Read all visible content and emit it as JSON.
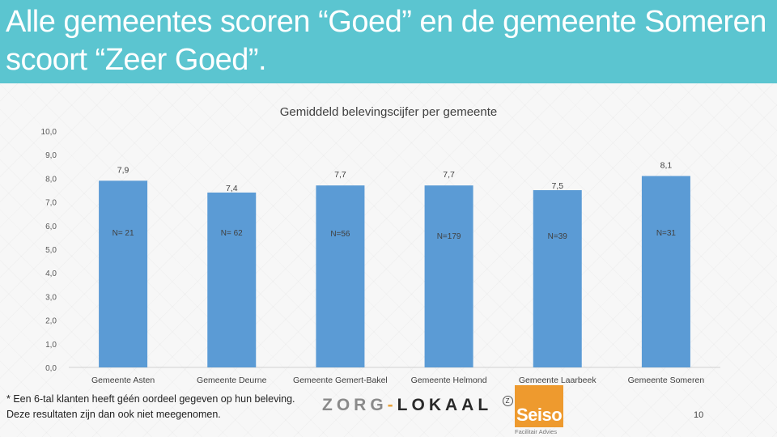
{
  "slide": {
    "title": "Alle gemeentes scoren “Goed” en de gemeente Someren scoort “Zeer Goed”.",
    "footnote": "* Een 6-tal klanten heeft géén oordeel gegeven op hun beleving. Deze resultaten zijn dan ook niet meegenomen.",
    "page_number": "10",
    "colors": {
      "header": "#5bc5d0",
      "bar": "#5b9bd5"
    }
  },
  "logos": {
    "zorg_lokaal": {
      "part1": "ZORG",
      "dash": "-",
      "part2": "LOKAAL",
      "badge": "Z"
    },
    "seiso": {
      "name": "Seiso",
      "tagline": "Facilitair Advies"
    }
  },
  "chart_data": {
    "type": "bar",
    "title": "Gemiddeld belevingscijfer per gemeente",
    "categories": [
      "Gemeente Asten",
      "Gemeente Deurne",
      "Gemeente Gemert-Bakel",
      "Gemeente Helmond",
      "Gemeente Laarbeek",
      "Gemeente Someren"
    ],
    "values": [
      7.9,
      7.4,
      7.7,
      7.7,
      7.5,
      8.1
    ],
    "value_labels": [
      "7,9",
      "7,4",
      "7,7",
      "7,7",
      "7,5",
      "8,1"
    ],
    "n_labels": [
      "N= 21",
      "N= 62",
      "N=56",
      "N=179",
      "N=39",
      "N=31"
    ],
    "yticks": [
      "0,0",
      "1,0",
      "2,0",
      "3,0",
      "4,0",
      "5,0",
      "6,0",
      "7,0",
      "8,0",
      "9,0",
      "10,0"
    ],
    "ylim": [
      0,
      10
    ],
    "grid": false,
    "legend": "none"
  }
}
